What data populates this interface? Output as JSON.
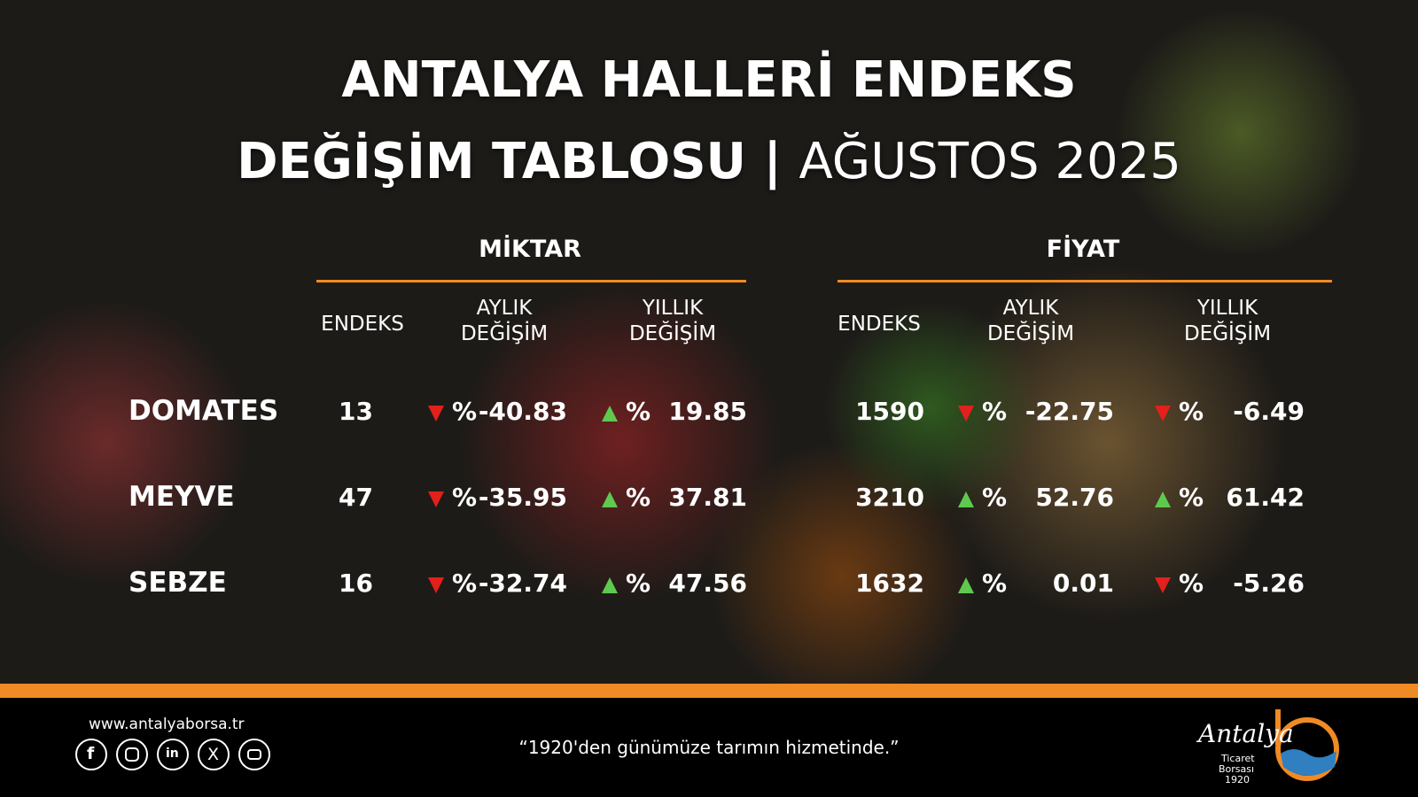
{
  "title": {
    "line1": "ANTALYA HALLERİ ENDEKS",
    "line2_bold": "DEĞİŞİM TABLOSU",
    "separator": "|",
    "line2_light": "AĞUSTOS 2025"
  },
  "groups": [
    {
      "name": "MİKTAR",
      "columns": [
        [
          "ENDEKS"
        ],
        [
          "AYLIK",
          "DEĞİŞİM"
        ],
        [
          "YILLIK",
          "DEĞİŞİM"
        ]
      ]
    },
    {
      "name": "FİYAT",
      "columns": [
        [
          "ENDEKS"
        ],
        [
          "AYLIK",
          "DEĞİŞİM"
        ],
        [
          "YILLIK",
          "DEĞİŞİM"
        ]
      ]
    }
  ],
  "percent_sign": "%",
  "rows": [
    {
      "label": "DOMATES",
      "miktar": [
        13,
        -40.83,
        19.85
      ],
      "fiyat": [
        1590,
        -22.75,
        -6.49
      ]
    },
    {
      "label": "MEYVE",
      "miktar": [
        47,
        -35.95,
        37.81
      ],
      "fiyat": [
        3210,
        52.76,
        61.42
      ]
    },
    {
      "label": "SEBZE",
      "miktar": [
        16,
        -32.74,
        47.56
      ],
      "fiyat": [
        1632,
        0.01,
        -5.26
      ]
    }
  ],
  "footer": {
    "website": "www.antalyaborsa.tr",
    "slogan": "“1920'den günümüze tarımın hizmetinde.”",
    "logo": {
      "name": "Antalya",
      "line1": "Ticaret",
      "line2": "Borsası",
      "line3": "1920"
    }
  }
}
